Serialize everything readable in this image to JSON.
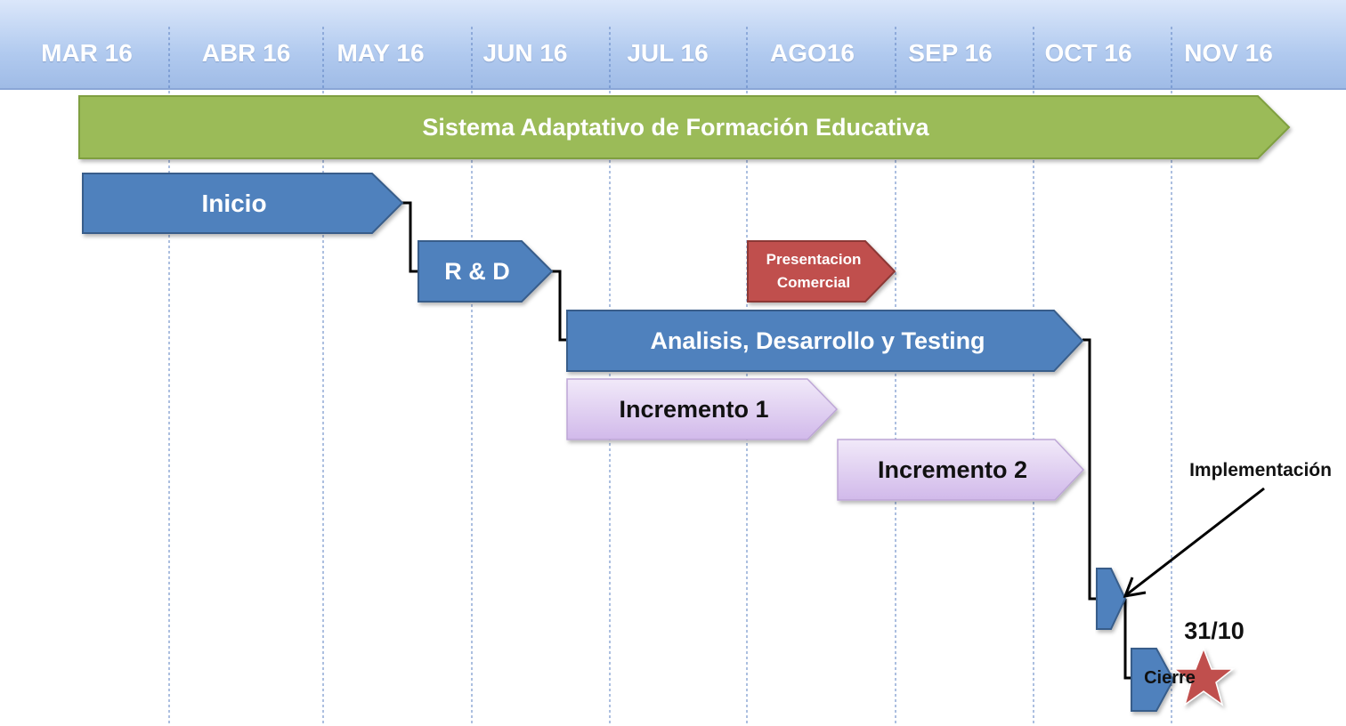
{
  "timeline": {
    "months": [
      "MAR 16",
      "ABR 16",
      "MAY 16",
      "JUN 16",
      "JUL 16",
      "AGO16",
      "SEP 16",
      "OCT 16",
      "NOV 16"
    ]
  },
  "bars": {
    "project": "Sistema Adaptativo de Formación Educativa",
    "inicio": "Inicio",
    "rd": "R & D",
    "presentacion_line1": "Presentacion",
    "presentacion_line2": "Comercial",
    "analisis": "Analisis, Desarrollo y Testing",
    "incremento1": "Incremento 1",
    "incremento2": "Incremento 2",
    "cierre": "Cierre"
  },
  "annotations": {
    "implementacion": "Implementación",
    "milestone_date": "31/10"
  },
  "colors": {
    "header": "#b6cdf0",
    "project": "#9bbb59",
    "phase": "#4f81bd",
    "presentacion": "#c0504d",
    "increment": "#dcc8ef",
    "star": "#c0504d"
  }
}
